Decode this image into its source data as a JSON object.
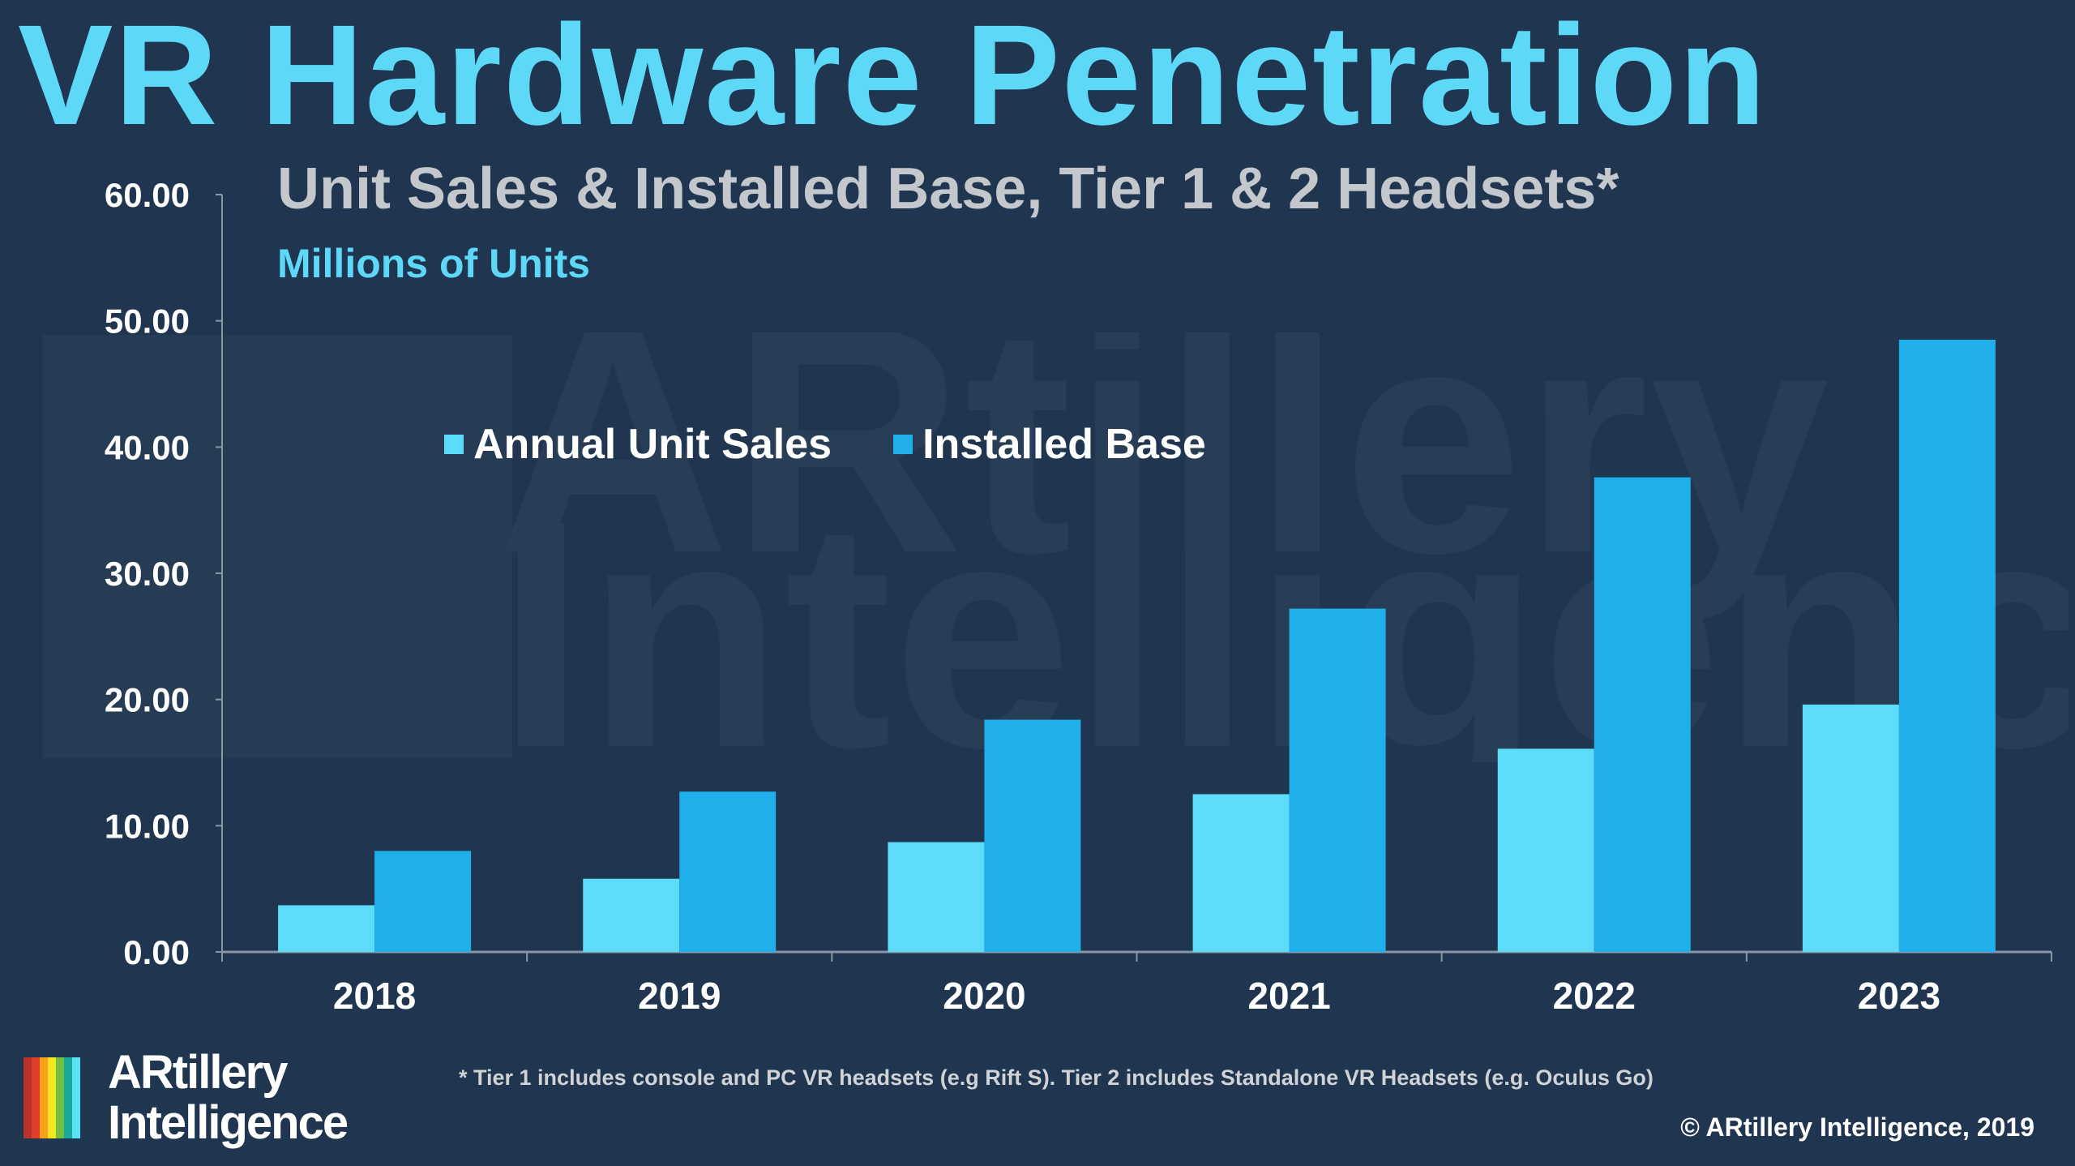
{
  "header": {
    "title": "VR Hardware Penetration",
    "subtitle": "Unit Sales & Installed Base, Tier 1 & 2 Headsets*",
    "units": "Millions of Units"
  },
  "watermark": {
    "line1": "ARtillery",
    "line2": "Intelligence"
  },
  "chart_data": {
    "type": "bar",
    "title": "Unit Sales & Installed Base, Tier 1 & 2 Headsets*",
    "ylabel": "Millions of Units",
    "xlabel": "",
    "categories": [
      "2018",
      "2019",
      "2020",
      "2021",
      "2022",
      "2023"
    ],
    "series": [
      {
        "name": "Annual Unit Sales",
        "color": "#5ddcf9",
        "values": [
          3.7,
          5.8,
          8.7,
          12.5,
          16.1,
          19.6
        ]
      },
      {
        "name": "Installed Base",
        "color": "#1fb0eb",
        "values": [
          8.0,
          12.7,
          18.4,
          27.2,
          37.6,
          48.5
        ]
      }
    ],
    "ylim": [
      0,
      60
    ],
    "yticks": [
      "0.00",
      "10.00",
      "20.00",
      "30.00",
      "40.00",
      "50.00",
      "60.00"
    ],
    "grid": false,
    "legend_position": "top-left"
  },
  "footer": {
    "footnote": "* Tier 1 includes console and PC VR headsets (e.g Rift S). Tier 2 includes Standalone VR Headsets (e.g. Oculus Go)",
    "copyright": "© ARtillery Intelligence, 2019",
    "logo": {
      "line1": "ARtillery",
      "line2": "Intelligence",
      "stripe_colors": [
        "#b8332a",
        "#e53d2b",
        "#f6a21d",
        "#f7e51e",
        "#71c043",
        "#1ca89a",
        "#58e3f5"
      ]
    }
  }
}
